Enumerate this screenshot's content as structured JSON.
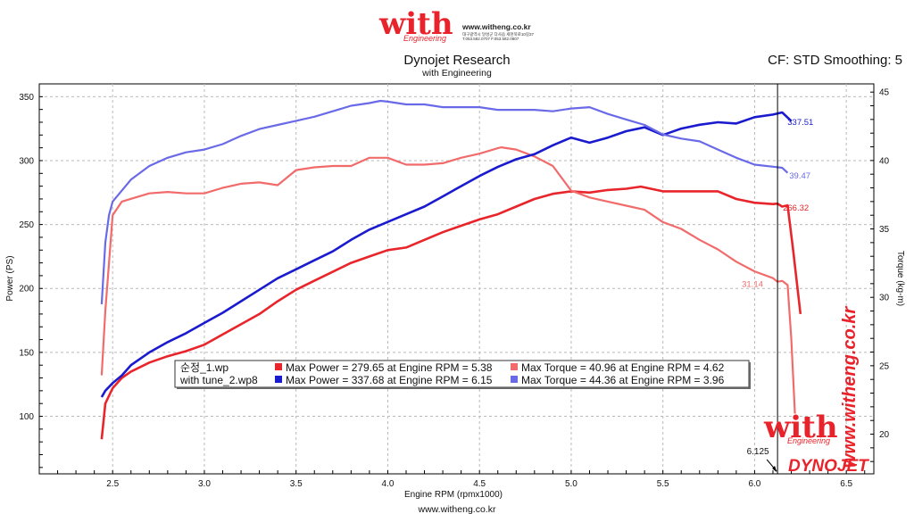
{
  "logo": {
    "brand": "with",
    "tagline": "Engineering",
    "url": "www.witheng.co.kr",
    "address": "대구광역시 달성군 다사읍 세천북로10길37",
    "phone": "T.053.582.0707 F.053.582.0807"
  },
  "header": {
    "title": "Dynojet Research",
    "subtitle": "with Engineering",
    "correction": "CF: STD Smoothing: 5"
  },
  "side_watermark": "www.witheng.co.kr",
  "footer_url": "www.witheng.co.kr",
  "dynojet_logo": "DYNOJET",
  "colors": {
    "power_run1": "#e8252b",
    "torque_run1": "#f26b6b",
    "power_run2": "#1a1acf",
    "torque_run2": "#6a6ae8",
    "grid": "#b9b9b9",
    "cursor": "#000000"
  },
  "chart_data": {
    "type": "line",
    "xlabel": "Engine RPM (rpmx1000)",
    "ylabel": "Power (PS)",
    "y2label": "Torque (kg-m)",
    "xlim": [
      2.1,
      6.65
    ],
    "ylim": [
      55,
      360
    ],
    "y2lim": [
      17.1,
      45.6
    ],
    "x_ticks": [
      "2.5",
      "3.0",
      "3.5",
      "4.0",
      "4.5",
      "5.0",
      "5.5",
      "6.0",
      "6.5"
    ],
    "y_ticks": [
      "100",
      "150",
      "200",
      "250",
      "300",
      "350"
    ],
    "y2_ticks": [
      "20",
      "25",
      "30",
      "35",
      "40",
      "45"
    ],
    "grid": true,
    "legend_position": "bottom-center",
    "cursor": {
      "x": 6.125,
      "label": "6.125"
    },
    "series": [
      {
        "name": "순정_1.wp",
        "kind": "power",
        "axis": "left",
        "color": "#e8252b",
        "end_label": "266.32",
        "x": [
          2.44,
          2.46,
          2.5,
          2.55,
          2.6,
          2.7,
          2.8,
          2.9,
          3.0,
          3.1,
          3.2,
          3.3,
          3.4,
          3.5,
          3.6,
          3.7,
          3.8,
          3.9,
          4.0,
          4.1,
          4.2,
          4.3,
          4.4,
          4.5,
          4.6,
          4.7,
          4.8,
          4.9,
          5.0,
          5.1,
          5.2,
          5.3,
          5.38,
          5.5,
          5.6,
          5.7,
          5.8,
          5.9,
          6.0,
          6.1,
          6.125,
          6.15,
          6.18,
          6.21,
          6.25
        ],
        "y": [
          82,
          110,
          122,
          130,
          135,
          142,
          147,
          151,
          156,
          164,
          172,
          180,
          190,
          199,
          206,
          213,
          220,
          225,
          230,
          232,
          238,
          244,
          249,
          254,
          258,
          264,
          270,
          274,
          276,
          275,
          277,
          278,
          279.65,
          276,
          276,
          276,
          276,
          270,
          267,
          266,
          266.32,
          264,
          265,
          230,
          180
        ]
      },
      {
        "name": "순정_1.wp",
        "kind": "torque",
        "axis": "right",
        "color": "#f26b6b",
        "end_label": "31.14",
        "x": [
          2.44,
          2.46,
          2.48,
          2.5,
          2.55,
          2.6,
          2.7,
          2.8,
          2.9,
          3.0,
          3.1,
          3.2,
          3.3,
          3.4,
          3.5,
          3.6,
          3.7,
          3.8,
          3.9,
          4.0,
          4.1,
          4.2,
          4.3,
          4.4,
          4.5,
          4.6,
          4.62,
          4.7,
          4.8,
          4.9,
          5.0,
          5.1,
          5.2,
          5.3,
          5.4,
          5.5,
          5.6,
          5.7,
          5.8,
          5.9,
          6.0,
          6.1,
          6.125,
          6.15,
          6.18,
          6.2,
          6.22
        ],
        "y": [
          24.3,
          29,
          32.5,
          36,
          37,
          37.2,
          37.6,
          37.7,
          37.6,
          37.6,
          38,
          38.3,
          38.4,
          38.2,
          39.3,
          39.5,
          39.6,
          39.6,
          40.2,
          40.2,
          39.7,
          39.7,
          39.8,
          40.2,
          40.5,
          40.9,
          40.96,
          40.8,
          40.3,
          39.6,
          37.8,
          37.3,
          37,
          36.7,
          36.4,
          35.5,
          35,
          34.2,
          33.5,
          32.6,
          31.9,
          31.4,
          31.14,
          31.2,
          30.9,
          27,
          21.5
        ]
      },
      {
        "name": "with tune_2.wp8",
        "kind": "power",
        "axis": "left",
        "color": "#1a1acf",
        "end_label": "337.51",
        "x": [
          2.44,
          2.46,
          2.5,
          2.55,
          2.6,
          2.7,
          2.8,
          2.9,
          3.0,
          3.1,
          3.2,
          3.3,
          3.4,
          3.5,
          3.6,
          3.7,
          3.8,
          3.9,
          4.0,
          4.1,
          4.2,
          4.3,
          4.4,
          4.5,
          4.6,
          4.7,
          4.8,
          4.9,
          5.0,
          5.1,
          5.2,
          5.3,
          5.4,
          5.5,
          5.6,
          5.7,
          5.8,
          5.9,
          6.0,
          6.1,
          6.15,
          6.2
        ],
        "y": [
          115,
          120,
          126,
          132,
          140,
          150,
          158,
          165,
          173,
          181,
          190,
          199,
          208,
          215,
          222,
          229,
          238,
          246,
          252,
          258,
          264,
          272,
          280,
          288,
          295,
          301,
          305,
          312,
          318,
          314,
          318,
          323,
          326,
          320,
          325,
          328,
          330,
          329,
          334,
          336,
          337.68,
          331
        ]
      },
      {
        "name": "with tune_2.wp8",
        "kind": "torque",
        "axis": "right",
        "color": "#6a6ae8",
        "end_label": "39.47",
        "x": [
          2.44,
          2.46,
          2.48,
          2.5,
          2.55,
          2.6,
          2.7,
          2.8,
          2.9,
          3.0,
          3.1,
          3.2,
          3.3,
          3.4,
          3.5,
          3.6,
          3.7,
          3.8,
          3.9,
          3.96,
          4.0,
          4.1,
          4.2,
          4.3,
          4.4,
          4.5,
          4.6,
          4.7,
          4.8,
          4.9,
          5.0,
          5.1,
          5.2,
          5.3,
          5.4,
          5.5,
          5.6,
          5.7,
          5.8,
          5.9,
          6.0,
          6.1,
          6.15,
          6.18
        ],
        "y": [
          29.5,
          34,
          36,
          37,
          37.8,
          38.6,
          39.6,
          40.2,
          40.6,
          40.8,
          41.2,
          41.8,
          42.3,
          42.6,
          42.9,
          43.2,
          43.6,
          44,
          44.2,
          44.36,
          44.3,
          44.1,
          44.1,
          43.9,
          43.9,
          43.9,
          43.7,
          43.7,
          43.7,
          43.6,
          43.8,
          43.9,
          43.4,
          43,
          42.6,
          41.9,
          41.6,
          41.4,
          40.8,
          40.2,
          39.7,
          39.55,
          39.47,
          39.1
        ]
      }
    ],
    "legend": [
      {
        "name": "순정_1.wp",
        "power_text": "Max Power = 279.65 at Engine RPM = 5.38",
        "torque_text": "Max Torque = 40.96 at Engine RPM = 4.62",
        "power_color": "#e8252b",
        "torque_color": "#f26b6b"
      },
      {
        "name": "with tune_2.wp8",
        "power_text": "Max Power = 337.68 at Engine RPM = 6.15",
        "torque_text": "Max Torque = 44.36 at Engine RPM = 3.96",
        "power_color": "#1a1acf",
        "torque_color": "#6a6ae8"
      }
    ]
  }
}
